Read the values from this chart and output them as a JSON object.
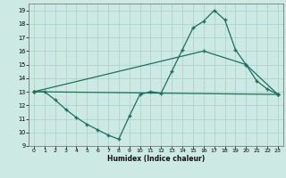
{
  "xlabel": "Humidex (Indice chaleur)",
  "xlim": [
    -0.5,
    23.5
  ],
  "ylim": [
    9,
    19.5
  ],
  "xticks": [
    0,
    1,
    2,
    3,
    4,
    5,
    6,
    7,
    8,
    9,
    10,
    11,
    12,
    13,
    14,
    15,
    16,
    17,
    18,
    19,
    20,
    21,
    22,
    23
  ],
  "yticks": [
    9,
    10,
    11,
    12,
    13,
    14,
    15,
    16,
    17,
    18,
    19
  ],
  "bg_color": "#cce9e4",
  "grid_color": "#aed4ce",
  "line_color": "#1e6e5e",
  "line1_x": [
    0,
    1,
    2,
    3,
    4,
    5,
    6,
    7,
    8,
    9,
    10,
    11,
    12,
    13,
    14,
    15,
    16,
    17,
    18,
    19,
    20,
    21,
    22,
    23
  ],
  "line1_y": [
    13,
    13,
    12.4,
    11.7,
    11.1,
    10.6,
    10.2,
    9.8,
    9.5,
    11.2,
    12.8,
    13.0,
    12.9,
    14.5,
    16.1,
    17.7,
    18.2,
    19.0,
    18.3,
    16.1,
    15.0,
    13.8,
    13.2,
    12.8
  ],
  "line2_x": [
    0,
    16,
    20,
    23
  ],
  "line2_y": [
    13,
    16.0,
    15.0,
    12.8
  ],
  "line3_x": [
    0,
    23
  ],
  "line3_y": [
    13,
    12.8
  ]
}
